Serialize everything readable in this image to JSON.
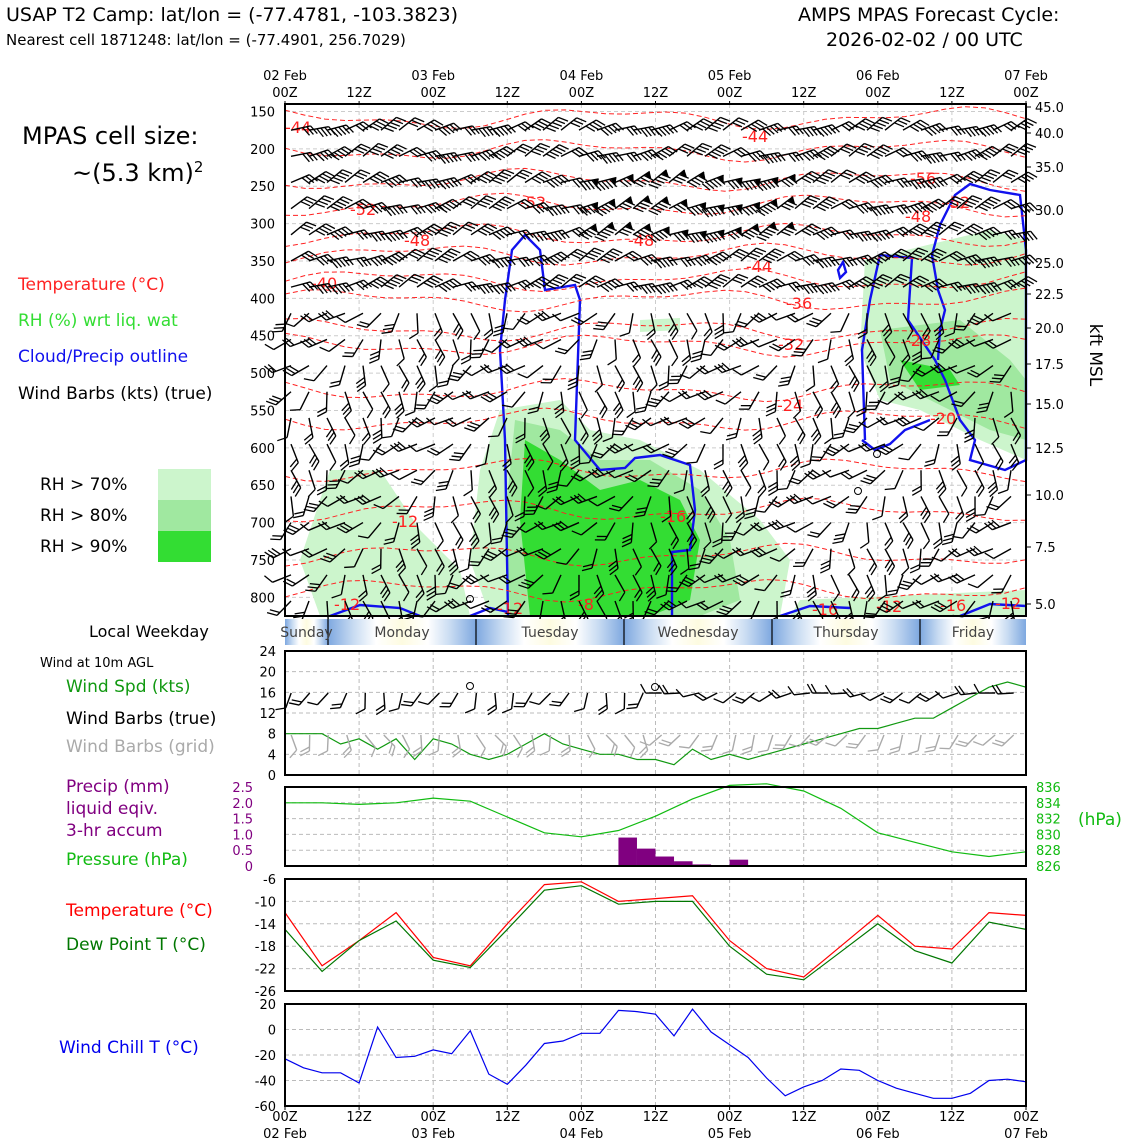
{
  "header": {
    "title_left": "USAP T2 Camp: lat/lon = (-77.4781, -103.3823)",
    "subtitle_left": "Nearest cell 1871248: lat/lon = (-77.4901, 256.7029)",
    "title_right_1": "AMPS MPAS Forecast Cycle:",
    "title_right_2": "2026-02-02 / 00 UTC"
  },
  "cell_size": {
    "line1": "MPAS cell size:",
    "line2": "~(5.3 km)",
    "sup": "2"
  },
  "legend_main": {
    "temperature": "Temperature (°C)",
    "temperature_color": "#ff2222",
    "rh": "RH (%) wrt liq. wat",
    "rh_color": "#33dd33",
    "cloud": "Cloud/Precip outline",
    "cloud_color": "#1111ee",
    "barbs": "Wind Barbs (kts) (true)"
  },
  "rh_legend": [
    {
      "label": "RH > 70%",
      "color": "#ccf5cc"
    },
    {
      "label": "RH > 80%",
      "color": "#a0e8a0"
    },
    {
      "label": "RH > 90%",
      "color": "#33dd33"
    }
  ],
  "time_axis": {
    "top_hours": [
      "00Z",
      "12Z",
      "00Z",
      "12Z",
      "00Z",
      "12Z",
      "00Z",
      "12Z",
      "00Z",
      "12Z",
      "00Z"
    ],
    "dates": [
      {
        "label": "02 Feb",
        "index": 0
      },
      {
        "label": "03 Feb",
        "index": 2
      },
      {
        "label": "04 Feb",
        "index": 4
      },
      {
        "label": "05 Feb",
        "index": 6
      },
      {
        "label": "06 Feb",
        "index": 8
      },
      {
        "label": "07 Feb",
        "index": 10
      }
    ]
  },
  "cross_section": {
    "pressure_ticks": [
      "150",
      "200",
      "250",
      "300",
      "350",
      "400",
      "450",
      "500",
      "550",
      "600",
      "650",
      "700",
      "750",
      "800"
    ],
    "kft_ticks": [
      "45.0",
      "40.0",
      "35.0",
      "30.0",
      "25.0",
      "22.5",
      "20.0",
      "17.5",
      "15.0",
      "12.5",
      "10.0",
      "7.5",
      "5.0"
    ],
    "kft_label": "kft MSL",
    "temp_labels": [
      "-44",
      "-44",
      "-52",
      "-56",
      "-48",
      "-52",
      "-52",
      "-48",
      "-48",
      "-40",
      "-44",
      "-36",
      "-32",
      "-28",
      "-24",
      "-20",
      "-12",
      "-16",
      "-12",
      "-12",
      "-8",
      "-16",
      "-12",
      "-16",
      "-12"
    ]
  },
  "weekday": {
    "label": "Local Weekday",
    "days": [
      "Sunday",
      "Monday",
      "Tuesday",
      "Wednesday",
      "Thursday",
      "Friday"
    ]
  },
  "wind_panel": {
    "header": "Wind at 10m AGL",
    "labels": {
      "spd": "Wind Spd (kts)",
      "barbs_true": "Wind Barbs (true)",
      "barbs_grid": "Wind Barbs (grid)"
    },
    "y_ticks": [
      "24",
      "20",
      "16",
      "12",
      "8",
      "4",
      "0"
    ],
    "spd_color": "#119911",
    "grid_color": "#aaaaaa"
  },
  "precip_panel": {
    "labels": {
      "precip1": "Precip (mm)",
      "precip2": "liquid eqiv.",
      "precip3": "3-hr accum",
      "pressure": "Pressure (hPa)"
    },
    "left_ticks": [
      "2.5",
      "2.0",
      "1.5",
      "1.0",
      "0.5",
      "0"
    ],
    "right_ticks": [
      "836",
      "834",
      "832",
      "830",
      "828",
      "826"
    ],
    "right_unit": "(hPa)",
    "precip_color": "#800080",
    "pressure_color": "#11bb11"
  },
  "temp_panel": {
    "labels": {
      "t": "Temperature (°C)",
      "td": "Dew Point T (°C)"
    },
    "y_ticks": [
      "-6",
      "-10",
      "-14",
      "-18",
      "-22",
      "-26"
    ],
    "t_color": "#ff0000",
    "td_color": "#007700"
  },
  "chill_panel": {
    "label": "Wind Chill T (°C)",
    "y_ticks": [
      "20",
      "0",
      "-20",
      "-40",
      "-60"
    ],
    "color": "#0000ee"
  },
  "chart_data": [
    {
      "type": "line",
      "title": "Wind at 10m AGL",
      "x_hours": [
        0,
        6,
        9,
        12,
        15,
        18,
        21,
        24,
        27,
        30,
        33,
        36,
        39,
        42,
        45,
        48,
        51,
        54,
        57,
        60,
        63,
        66,
        69,
        72,
        75,
        78,
        81,
        84,
        87,
        90,
        93,
        96,
        99,
        102,
        105,
        108,
        111,
        114,
        117,
        120
      ],
      "series": [
        {
          "name": "Wind Spd (kts)",
          "values": [
            8,
            8,
            6,
            7,
            5,
            7,
            3,
            7,
            6,
            4,
            3,
            4,
            6,
            8,
            6,
            5,
            4,
            4,
            3,
            3,
            2,
            5,
            3,
            4,
            3,
            4,
            5,
            6,
            7,
            8,
            9,
            9,
            10,
            11,
            11,
            13,
            15,
            17,
            18,
            17
          ]
        }
      ],
      "ylim": [
        0,
        24
      ]
    },
    {
      "type": "bar",
      "title": "Precip (mm) liquid eqiv. 3-hr accum",
      "x_hours": [
        57,
        60,
        63,
        66,
        69,
        75
      ],
      "values": [
        0.9,
        0.55,
        0.3,
        0.15,
        0.05,
        0.2
      ],
      "ylim": [
        0,
        2.5
      ]
    },
    {
      "type": "line",
      "title": "Pressure (hPa)",
      "x_hours": [
        0,
        6,
        12,
        18,
        24,
        30,
        36,
        42,
        48,
        54,
        60,
        66,
        72,
        78,
        84,
        90,
        96,
        102,
        108,
        114,
        120
      ],
      "values": [
        834,
        834,
        833.8,
        834,
        834.6,
        834.2,
        832.2,
        830.2,
        829.7,
        830.5,
        832.3,
        834.5,
        836.2,
        836.4,
        835.5,
        833.3,
        830.2,
        829,
        827.8,
        827.2,
        827.8
      ],
      "ylim": [
        826,
        836
      ]
    },
    {
      "type": "line",
      "title": "Temperature / Dew Point",
      "x_hours": [
        0,
        6,
        12,
        18,
        24,
        30,
        36,
        42,
        48,
        54,
        60,
        66,
        72,
        78,
        84,
        90,
        96,
        102,
        108,
        114,
        120
      ],
      "series": [
        {
          "name": "Temperature (°C)",
          "values": [
            -12,
            -21.5,
            -17,
            -12,
            -20,
            -21.5,
            -14,
            -7,
            -6.5,
            -10,
            -9.5,
            -9,
            -17,
            -22,
            -23.5,
            -18,
            -12.5,
            -18,
            -18.5,
            -12,
            -12.5
          ]
        },
        {
          "name": "Dew Point T (°C)",
          "values": [
            -15,
            -22.5,
            -17,
            -13.5,
            -20.5,
            -21.8,
            -15,
            -8,
            -7.2,
            -10.5,
            -10,
            -10,
            -18,
            -23,
            -24,
            -19,
            -14,
            -18.8,
            -21,
            -13.7,
            -15
          ]
        }
      ],
      "ylim": [
        -26,
        -6
      ]
    },
    {
      "type": "line",
      "title": "Wind Chill T (°C)",
      "x_hours": [
        0,
        3,
        6,
        9,
        12,
        15,
        18,
        21,
        24,
        27,
        30,
        33,
        36,
        39,
        42,
        45,
        48,
        51,
        54,
        57,
        60,
        63,
        66,
        69,
        72,
        75,
        78,
        81,
        84,
        87,
        90,
        93,
        96,
        99,
        102,
        105,
        108,
        111,
        114,
        117,
        120
      ],
      "values": [
        -23,
        -30,
        -34,
        -34,
        -42,
        2,
        -22,
        -21,
        -16,
        -19,
        -1,
        -35,
        -43,
        -28,
        -11,
        -9,
        -3,
        -3,
        15,
        14,
        12,
        -5,
        16,
        -2,
        -12,
        -22,
        -38,
        -52,
        -45,
        -40,
        -31,
        -32,
        -40,
        -46,
        -50,
        -54,
        -54,
        -50,
        -40,
        -39,
        -41
      ],
      "ylim": [
        -60,
        20
      ]
    }
  ]
}
